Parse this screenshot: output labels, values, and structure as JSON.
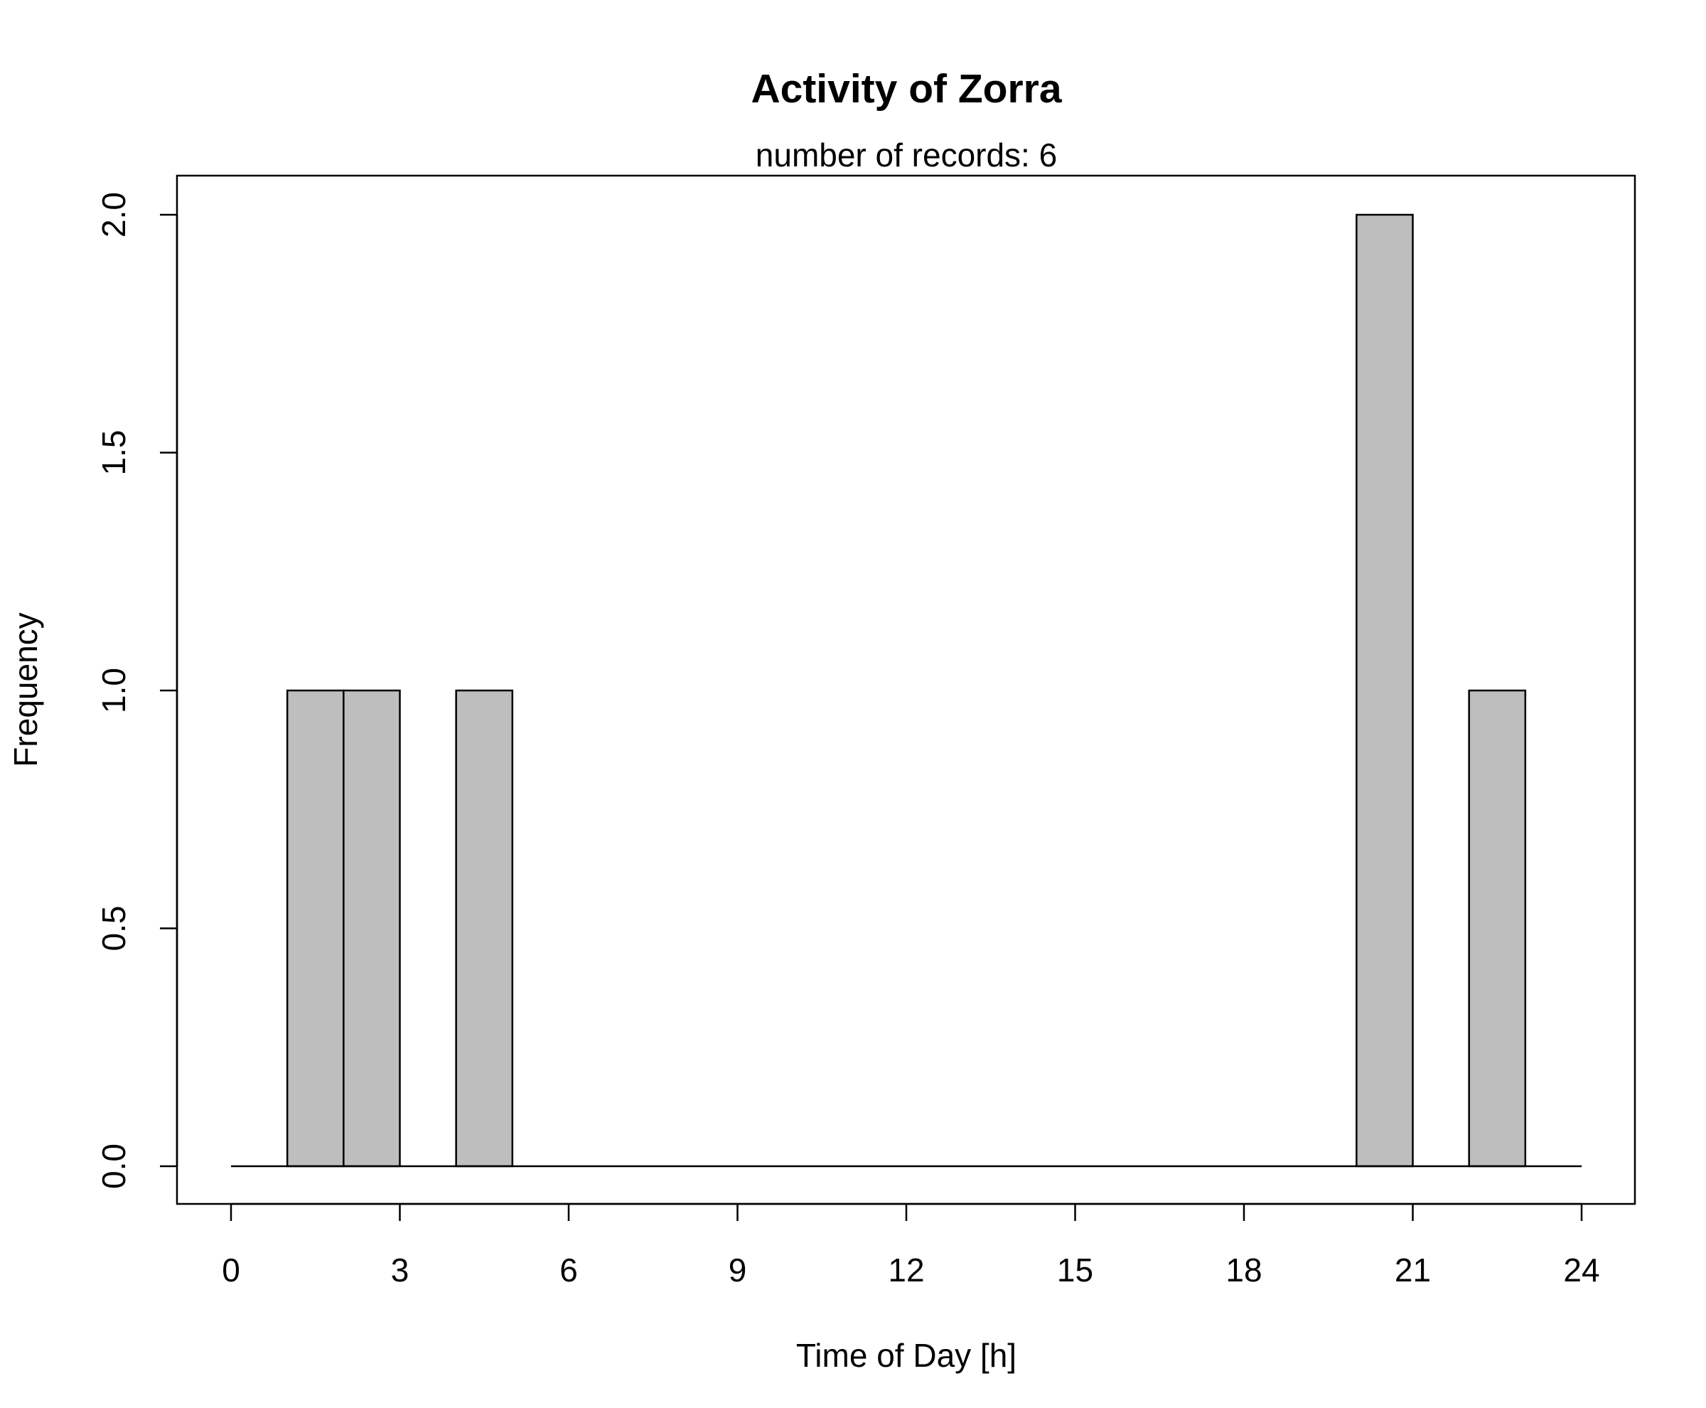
{
  "chart_data": {
    "type": "bar",
    "title": "Activity of Zorra",
    "subtitle": "number of records: 6",
    "xlabel": "Time of Day [h]",
    "ylabel": "Frequency",
    "xlim": [
      0,
      24
    ],
    "ylim": [
      0,
      2
    ],
    "x_ticks": [
      "0",
      "3",
      "6",
      "9",
      "12",
      "15",
      "18",
      "21",
      "24"
    ],
    "y_ticks": [
      "0.0",
      "0.5",
      "1.0",
      "1.5",
      "2.0"
    ],
    "bin_width": 1,
    "bins": [
      {
        "start": 1,
        "end": 2,
        "count": 1
      },
      {
        "start": 2,
        "end": 3,
        "count": 1
      },
      {
        "start": 4,
        "end": 5,
        "count": 1
      },
      {
        "start": 20,
        "end": 21,
        "count": 2
      },
      {
        "start": 22,
        "end": 23,
        "count": 1
      }
    ],
    "grid": false,
    "bar_color": "#bebebe"
  }
}
